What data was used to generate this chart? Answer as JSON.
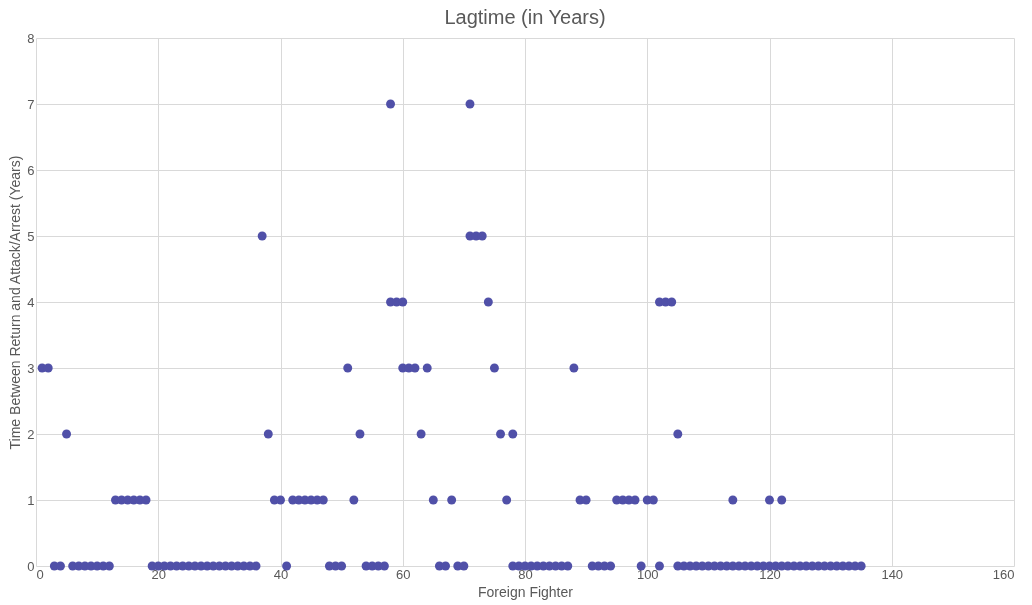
{
  "chart_data": {
    "type": "scatter",
    "title": "Lagtime (in Years)",
    "xlabel": "Foreign Fighter",
    "ylabel": "Time Between Return and Attack/Arrest (Years)",
    "xlim": [
      0,
      160
    ],
    "xticks": [
      0,
      20,
      40,
      60,
      80,
      100,
      120,
      140,
      160
    ],
    "ylim": [
      0,
      8
    ],
    "yticks": [
      0,
      1,
      2,
      3,
      4,
      5,
      6,
      7,
      8
    ],
    "grid": true,
    "marker": "circle",
    "legend": false,
    "series": [
      {
        "color": "#5050a8",
        "x": [
          1,
          2,
          3,
          4,
          5,
          6,
          7,
          8,
          9,
          10,
          11,
          12,
          13,
          14,
          15,
          16,
          17,
          18,
          19,
          20,
          21,
          22,
          23,
          24,
          25,
          26,
          27,
          28,
          29,
          30,
          31,
          32,
          33,
          34,
          35,
          36,
          37,
          38,
          39,
          40,
          41,
          42,
          43,
          44,
          45,
          46,
          47,
          48,
          49,
          50,
          51,
          52,
          53,
          54,
          55,
          56,
          57,
          58,
          58,
          59,
          60,
          60,
          61,
          62,
          63,
          64,
          65,
          66,
          67,
          68,
          69,
          70,
          71,
          71,
          72,
          73,
          74,
          75,
          76,
          77,
          78,
          78,
          79,
          80,
          81,
          82,
          83,
          84,
          85,
          86,
          87,
          88,
          89,
          90,
          91,
          92,
          93,
          94,
          95,
          96,
          97,
          98,
          99,
          100,
          101,
          102,
          102,
          103,
          104,
          105,
          105,
          106,
          107,
          108,
          109,
          110,
          111,
          112,
          113,
          114,
          114,
          115,
          116,
          117,
          118,
          119,
          120,
          120,
          121,
          122,
          122,
          123,
          124,
          125,
          126,
          127,
          128,
          129,
          130,
          131,
          132,
          133,
          134,
          135
        ],
        "values": [
          3,
          3,
          0,
          0,
          2,
          0,
          0,
          0,
          0,
          0,
          0,
          0,
          1,
          1,
          1,
          1,
          1,
          1,
          0,
          0,
          0,
          0,
          0,
          0,
          0,
          0,
          0,
          0,
          0,
          0,
          0,
          0,
          0,
          0,
          0,
          0,
          5,
          2,
          1,
          1,
          0,
          1,
          1,
          1,
          1,
          1,
          1,
          0,
          0,
          0,
          3,
          1,
          2,
          0,
          0,
          0,
          0,
          7,
          4,
          4,
          4,
          3,
          3,
          3,
          2,
          3,
          1,
          0,
          0,
          1,
          0,
          0,
          7,
          5,
          5,
          5,
          4,
          3,
          2,
          1,
          2,
          0,
          0,
          0,
          0,
          0,
          0,
          0,
          0,
          0,
          0,
          3,
          1,
          1,
          0,
          0,
          0,
          0,
          1,
          1,
          1,
          1,
          0,
          1,
          1,
          0,
          4,
          4,
          4,
          2,
          0,
          0,
          0,
          0,
          0,
          0,
          0,
          0,
          0,
          0,
          1,
          0,
          0,
          0,
          0,
          0,
          0,
          1,
          0,
          0,
          1,
          0,
          0,
          0,
          0,
          0,
          0,
          0,
          0,
          0,
          0,
          0,
          0,
          0
        ]
      }
    ]
  }
}
